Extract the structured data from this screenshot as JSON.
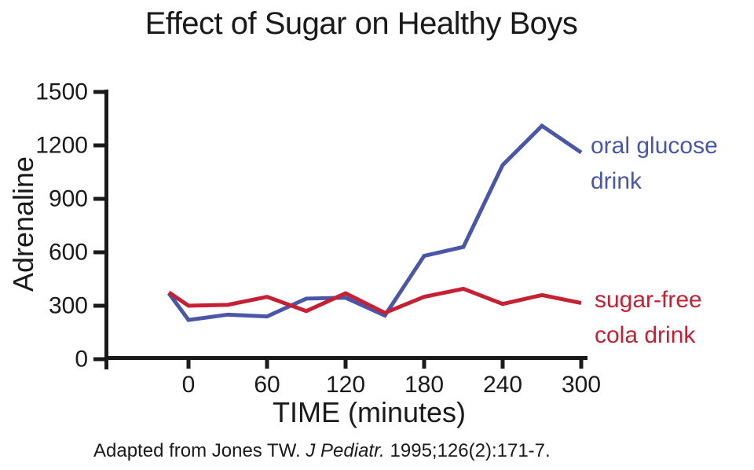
{
  "chart_data": {
    "type": "line",
    "title": "Effect of Sugar on Healthy Boys",
    "xlabel": "TIME (minutes)",
    "ylabel": "Adrenaline",
    "x": [
      -15,
      0,
      30,
      60,
      90,
      120,
      150,
      180,
      210,
      240,
      270,
      300
    ],
    "x_ticks": [
      0,
      60,
      120,
      180,
      240,
      300
    ],
    "y_ticks": [
      0,
      300,
      600,
      900,
      1200,
      1500
    ],
    "xlim": [
      -65,
      305
    ],
    "ylim": [
      0,
      1500
    ],
    "grid": false,
    "axis_color": "#1a1a1a",
    "legend_position": "right of line ends",
    "series": [
      {
        "name": "oral glucose drink",
        "label_lines": [
          "oral glucose",
          "drink"
        ],
        "color": "#4a57a9",
        "values": [
          370,
          220,
          250,
          240,
          340,
          345,
          245,
          580,
          630,
          1090,
          1310,
          1160
        ]
      },
      {
        "name": "sugar-free cola drink",
        "label_lines": [
          "sugar-free",
          "cola drink"
        ],
        "color": "#c52033",
        "values": [
          375,
          300,
          305,
          350,
          270,
          370,
          260,
          350,
          395,
          310,
          360,
          315
        ]
      }
    ]
  },
  "footer": {
    "prefix": "Adapted from Jones TW. ",
    "journal": "J Pediatr.",
    "suffix": " 1995;126(2):171-7."
  }
}
